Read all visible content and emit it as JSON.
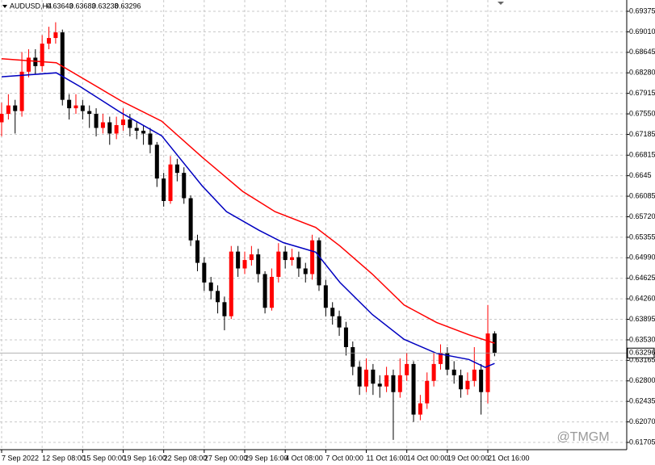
{
  "chart_data": {
    "type": "candlestick",
    "symbol": "AUDUSD,H4",
    "watermark": "@TMGM",
    "open": [
      0.674,
      0.6755,
      0.677,
      0.676,
      0.683,
      0.6855,
      0.684,
      0.688,
      0.689,
      0.69,
      0.678,
      0.6765,
      0.677,
      0.676,
      0.6755,
      0.673,
      0.674,
      0.672,
      0.6735,
      0.6745,
      0.673,
      0.6725,
      0.672,
      0.67,
      0.664,
      0.66,
      0.6665,
      0.665,
      0.6605,
      0.653,
      0.649,
      0.6455,
      0.644,
      0.642,
      0.6395,
      0.651,
      0.648,
      0.6495,
      0.6505,
      0.647,
      0.641,
      0.6465,
      0.651,
      0.6495,
      0.65,
      0.648,
      0.647,
      0.653,
      0.645,
      0.641,
      0.6395,
      0.6375,
      0.634,
      0.6305,
      0.627,
      0.63,
      0.6275,
      0.627,
      0.629,
      0.626,
      0.629,
      0.631,
      0.622,
      0.624,
      0.628,
      0.631,
      0.633,
      0.63,
      0.629,
      0.6265,
      0.628,
      0.63,
      0.626,
      0.63643
    ],
    "high": [
      0.6775,
      0.679,
      0.678,
      0.6865,
      0.687,
      0.687,
      0.6895,
      0.691,
      0.6918,
      0.6905,
      0.679,
      0.679,
      0.678,
      0.677,
      0.6765,
      0.6755,
      0.675,
      0.675,
      0.6765,
      0.6755,
      0.674,
      0.6735,
      0.673,
      0.6705,
      0.665,
      0.668,
      0.6675,
      0.666,
      0.661,
      0.654,
      0.65,
      0.6465,
      0.645,
      0.643,
      0.652,
      0.652,
      0.651,
      0.652,
      0.6515,
      0.6475,
      0.648,
      0.6525,
      0.652,
      0.6515,
      0.651,
      0.649,
      0.654,
      0.6535,
      0.646,
      0.642,
      0.6405,
      0.6385,
      0.635,
      0.6315,
      0.632,
      0.631,
      0.629,
      0.6305,
      0.63,
      0.632,
      0.633,
      0.6315,
      0.6255,
      0.6295,
      0.633,
      0.6345,
      0.634,
      0.6315,
      0.63,
      0.6295,
      0.634,
      0.631,
      0.6415,
      0.63683
    ],
    "low": [
      0.6715,
      0.6745,
      0.672,
      0.675,
      0.682,
      0.6825,
      0.683,
      0.687,
      0.688,
      0.677,
      0.6745,
      0.6755,
      0.6745,
      0.673,
      0.6715,
      0.672,
      0.67,
      0.671,
      0.6725,
      0.6715,
      0.671,
      0.67,
      0.6685,
      0.6625,
      0.659,
      0.6595,
      0.6635,
      0.6595,
      0.652,
      0.6475,
      0.644,
      0.6425,
      0.64,
      0.637,
      0.639,
      0.6465,
      0.647,
      0.6485,
      0.6455,
      0.64,
      0.6405,
      0.6455,
      0.648,
      0.6485,
      0.6465,
      0.6455,
      0.646,
      0.644,
      0.6395,
      0.638,
      0.636,
      0.6325,
      0.629,
      0.6255,
      0.626,
      0.6255,
      0.625,
      0.626,
      0.6175,
      0.625,
      0.628,
      0.6207,
      0.621,
      0.623,
      0.627,
      0.63,
      0.629,
      0.6275,
      0.625,
      0.6255,
      0.627,
      0.622,
      0.624,
      0.63238
    ],
    "close": [
      0.6755,
      0.677,
      0.676,
      0.683,
      0.6855,
      0.684,
      0.688,
      0.689,
      0.69,
      0.678,
      0.6765,
      0.677,
      0.676,
      0.6755,
      0.673,
      0.674,
      0.672,
      0.6735,
      0.6745,
      0.673,
      0.6725,
      0.672,
      0.67,
      0.664,
      0.66,
      0.6665,
      0.665,
      0.6605,
      0.653,
      0.649,
      0.6455,
      0.644,
      0.642,
      0.6395,
      0.651,
      0.648,
      0.6495,
      0.6505,
      0.647,
      0.641,
      0.6465,
      0.651,
      0.6495,
      0.65,
      0.648,
      0.647,
      0.653,
      0.645,
      0.641,
      0.6395,
      0.6375,
      0.634,
      0.6305,
      0.627,
      0.63,
      0.6275,
      0.627,
      0.629,
      0.626,
      0.629,
      0.631,
      0.622,
      0.624,
      0.628,
      0.631,
      0.633,
      0.63,
      0.629,
      0.6265,
      0.628,
      0.63,
      0.626,
      0.63643,
      0.63296
    ],
    "up_color": "#ff0000",
    "down_color": "#000000",
    "lines": [
      {
        "color": "#ff0000",
        "x": [
          0,
          8.1,
          17.7,
          23.7,
          29.7,
          35.7,
          40.5,
          46.5,
          50.1,
          54.9,
          59.6,
          64.4,
          69.2,
          73
        ],
        "values": [
          0.6853,
          0.6846,
          0.6778,
          0.6742,
          0.6678,
          0.6617,
          0.6581,
          0.6553,
          0.652,
          0.647,
          0.6415,
          0.6384,
          0.6362,
          0.6347
        ]
      },
      {
        "color": "#0000c0",
        "x": [
          0,
          8.1,
          11.7,
          17.7,
          23.7,
          29.7,
          33.3,
          38.1,
          41.7,
          46.5,
          50.1,
          54.9,
          59.6,
          64.4,
          69.2,
          71.6,
          73
        ],
        "values": [
          0.6821,
          0.6828,
          0.6803,
          0.6757,
          0.6716,
          0.6627,
          0.6581,
          0.6548,
          0.6526,
          0.6509,
          0.6455,
          0.6398,
          0.6354,
          0.6329,
          0.6318,
          0.6304,
          0.6311
        ]
      }
    ],
    "xlim": [
      -0.24,
      92.57
    ],
    "ylim": [
      0.61576,
      0.69576
    ],
    "xticks": [
      {
        "value": 0,
        "label": "7 Sep 2022"
      },
      {
        "value": 6,
        "label": "12 Sep 08:00"
      },
      {
        "value": 12,
        "label": "15 Sep 00:00"
      },
      {
        "value": 18,
        "label": "19 Sep 16:00"
      },
      {
        "value": 24,
        "label": "22 Sep 08:00"
      },
      {
        "value": 30,
        "label": "27 Sep 00:00"
      },
      {
        "value": 36,
        "label": "29 Sep 16:00"
      },
      {
        "value": 42,
        "label": "4 Oct 08:00"
      },
      {
        "value": 48,
        "label": "7 Oct 00:00"
      },
      {
        "value": 54,
        "label": "11 Oct 16:00"
      },
      {
        "value": 60,
        "label": "14 Oct 00:00"
      },
      {
        "value": 66,
        "label": "19 Oct 00:00"
      },
      {
        "value": 72,
        "label": "21 Oct 16:00"
      }
    ],
    "yticks": [
      0.69375,
      {
        "value": 0.6901,
        "label": "0.69010"
      },
      0.68645,
      {
        "value": 0.6828,
        "label": "0.68280"
      },
      0.67915,
      {
        "value": 0.6755,
        "label": "0.67550"
      },
      0.67185,
      0.66815,
      0.6645,
      0.66085,
      {
        "value": 0.6572,
        "label": "0.65720"
      },
      0.65355,
      {
        "value": 0.6499,
        "label": "0.64990"
      },
      0.64625,
      {
        "value": 0.6426,
        "label": "0.64260"
      },
      0.63895,
      {
        "value": 0.6353,
        "label": "0.63530"
      },
      0.63165,
      {
        "value": 0.628,
        "label": "0.62800"
      },
      0.62435,
      {
        "value": 0.6207,
        "label": "0.62070"
      },
      0.61705
    ],
    "grid": true
  }
}
